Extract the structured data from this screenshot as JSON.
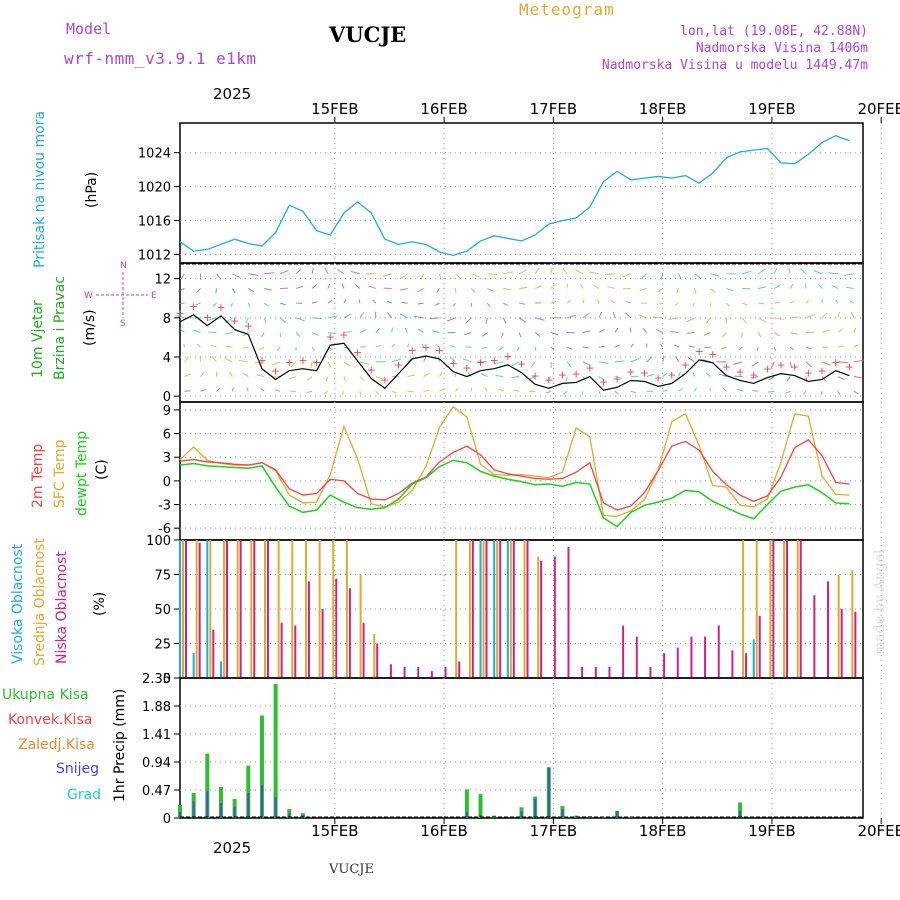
{
  "header": {
    "model_label": "Model",
    "model_name": "wrf-nmm_v3.9.1  e1km",
    "station": "VUCJE",
    "product": "Meteogram",
    "coords": "lon,lat (19.08E, 42.88N)",
    "elevation": "Nadmorska Visina 1406m",
    "model_elevation": "Nadmorska Visina u modelu 1449.47m",
    "footer_station": "VUCJE",
    "watermark": "made by Angel"
  },
  "colors": {
    "pressure": "#22aadd",
    "temp2m": "#ee4444",
    "sfc_temp": "#ddaa33",
    "dewpoint": "#22cc22",
    "high_cloud": "#22aadd",
    "mid_cloud": "#ddaa33",
    "low_cloud": "#cc2288",
    "total_precip": "#33bb33",
    "conv_precip": "#ee4444",
    "freezing": "#ee8833",
    "snow": "#4444dd",
    "hail": "#22cccc",
    "wind_label": "#22aa22",
    "direction_legend": "#aa44dd"
  },
  "time_axis": {
    "top_year": "2025",
    "bottom_year": "2025",
    "day_labels": [
      "15FEB",
      "16FEB",
      "17FEB",
      "18FEB",
      "19FEB",
      "20FEB"
    ]
  },
  "chart_data": [
    {
      "type": "line",
      "name": "pressure",
      "ylabel_left": "Pritisak na nivou mora",
      "unit": "(hPa)",
      "ylim": [
        1011,
        1027.5
      ],
      "yticks": [
        "1012",
        "1016",
        "1020",
        "1024"
      ],
      "grid": true,
      "x_hours": [
        0,
        3,
        6,
        9,
        12,
        15,
        18,
        21,
        24,
        27,
        30,
        33,
        36,
        39,
        42,
        45,
        48,
        51,
        54,
        57,
        60,
        63,
        66,
        69,
        72,
        75,
        78,
        81,
        84,
        87,
        90,
        93,
        96,
        99,
        102,
        105,
        108,
        111,
        114,
        117,
        120,
        123,
        126,
        129,
        132,
        135,
        138,
        141,
        144,
        147
      ],
      "series": [
        {
          "values": [
            1013.5,
            1012.4,
            1012.6,
            1013.2,
            1013.8,
            1013.3,
            1013.0,
            1014.6,
            1017.8,
            1017.1,
            1014.8,
            1014.3,
            1016.9,
            1018.2,
            1016.9,
            1013.8,
            1013.2,
            1013.5,
            1013.2,
            1012.3,
            1011.9,
            1012.4,
            1013.6,
            1014.2,
            1013.9,
            1013.6,
            1014.3,
            1015.6,
            1016.0,
            1016.3,
            1017.6,
            1020.6,
            1021.8,
            1020.8,
            1021.0,
            1021.2,
            1021.0,
            1021.3,
            1020.4,
            1021.6,
            1023.4,
            1024.1,
            1024.3,
            1024.5,
            1022.8,
            1022.7,
            1023.8,
            1025.2,
            1026.0,
            1025.4
          ]
        }
      ]
    },
    {
      "type": "line",
      "name": "wind",
      "ylabel_left": "10m Vjetar",
      "ylabel_left2": "Brzina i Pravac",
      "unit": "(m/s)",
      "ylim": [
        -0.6,
        13.6
      ],
      "yticks": [
        "0",
        "4",
        "8",
        "12"
      ],
      "direction_legend": {
        "n": "N",
        "s": "S",
        "w": "W",
        "e": "E"
      },
      "grid": true,
      "x_hours": [
        0,
        3,
        6,
        9,
        12,
        15,
        18,
        21,
        24,
        27,
        30,
        33,
        36,
        39,
        42,
        45,
        48,
        51,
        54,
        57,
        60,
        63,
        66,
        69,
        72,
        75,
        78,
        81,
        84,
        87,
        90,
        93,
        96,
        99,
        102,
        105,
        108,
        111,
        114,
        117,
        120,
        123,
        126,
        129,
        132,
        135,
        138,
        141,
        144,
        147
      ],
      "series": [
        {
          "name": "speed",
          "values": [
            7.6,
            8.3,
            7.2,
            8.2,
            6.8,
            6.3,
            2.8,
            1.7,
            2.6,
            2.8,
            2.6,
            5.2,
            5.4,
            3.6,
            1.8,
            0.8,
            2.3,
            3.8,
            4.1,
            3.8,
            2.5,
            2.0,
            2.6,
            2.8,
            3.2,
            2.4,
            1.2,
            0.8,
            1.3,
            1.4,
            2.0,
            0.6,
            0.9,
            1.6,
            1.5,
            1.0,
            1.3,
            2.3,
            3.7,
            3.4,
            2.1,
            1.6,
            1.3,
            1.9,
            2.3,
            2.1,
            1.5,
            1.7,
            2.6,
            2.1
          ]
        }
      ]
    },
    {
      "type": "line",
      "name": "temperature",
      "ylabel_left": "2m Temp",
      "ylabel_left2": "SFC Temp",
      "ylabel_left3": "dewpt Temp",
      "unit": "(C)",
      "ylim": [
        -7.5,
        10
      ],
      "yticks": [
        "-6",
        "-3",
        "0",
        "3",
        "6",
        "9"
      ],
      "grid": true,
      "x_hours": [
        0,
        3,
        6,
        9,
        12,
        15,
        18,
        21,
        24,
        27,
        30,
        33,
        36,
        39,
        42,
        45,
        48,
        51,
        54,
        57,
        60,
        63,
        66,
        69,
        72,
        75,
        78,
        81,
        84,
        87,
        90,
        93,
        96,
        99,
        102,
        105,
        108,
        111,
        114,
        117,
        120,
        123,
        126,
        129,
        132,
        135,
        138,
        141,
        144,
        147
      ],
      "series": [
        {
          "name": "2m",
          "values": [
            2.5,
            2.7,
            2.4,
            2.3,
            2.1,
            2.0,
            2.3,
            1.4,
            -1.0,
            -1.8,
            -1.6,
            0.2,
            0.0,
            -1.6,
            -2.3,
            -2.4,
            -1.6,
            -0.3,
            0.5,
            2.4,
            3.6,
            4.4,
            3.3,
            1.4,
            0.9,
            0.6,
            0.3,
            0.2,
            0.3,
            1.1,
            2.3,
            -2.8,
            -3.7,
            -3.2,
            -1.5,
            1.3,
            4.4,
            5.0,
            3.9,
            1.2,
            -0.5,
            -1.8,
            -2.6,
            -1.9,
            0.5,
            4.2,
            5.2,
            3.2,
            -0.2,
            -0.4
          ]
        },
        {
          "name": "sfc",
          "values": [
            2.7,
            4.3,
            2.6,
            2.2,
            2.0,
            2.0,
            2.3,
            1.3,
            -1.8,
            -2.8,
            -2.7,
            0.8,
            6.9,
            2.8,
            -2.9,
            -3.3,
            -2.7,
            -1.2,
            1.8,
            6.8,
            9.4,
            8.1,
            2.1,
            0.8,
            0.7,
            0.8,
            0.6,
            0.4,
            1.1,
            6.7,
            5.6,
            -4.4,
            -4.5,
            -3.8,
            -2.4,
            1.3,
            7.5,
            8.5,
            4.5,
            -0.6,
            -0.8,
            -3.1,
            -3.3,
            -2.3,
            2.4,
            8.5,
            8.2,
            0.6,
            -1.7,
            -1.8
          ]
        },
        {
          "name": "dewpt",
          "values": [
            2.0,
            2.2,
            1.9,
            1.8,
            1.7,
            1.6,
            1.9,
            -0.8,
            -3.2,
            -4.0,
            -3.7,
            -1.8,
            -2.7,
            -3.4,
            -3.6,
            -3.4,
            -2.3,
            -0.4,
            0.4,
            1.8,
            2.6,
            2.3,
            1.2,
            0.6,
            0.2,
            -0.1,
            -0.5,
            -0.4,
            -0.7,
            -0.2,
            -0.4,
            -4.7,
            -5.8,
            -4.0,
            -3.1,
            -2.7,
            -2.2,
            -1.2,
            -1.4,
            -2.6,
            -3.4,
            -4.2,
            -4.8,
            -3.0,
            -1.3,
            -0.8,
            -0.5,
            -1.5,
            -2.8,
            -2.9
          ]
        }
      ]
    },
    {
      "type": "bar",
      "name": "cloud",
      "ylabel_left": "Visoka Oblacnost",
      "ylabel_left2": "Srednja Oblacnost",
      "ylabel_left3": "Niska Oblacnost",
      "unit": "(%)",
      "ylim": [
        0,
        100
      ],
      "yticks": [
        "0",
        "25",
        "50",
        "75",
        "100"
      ],
      "grid": true,
      "x_hours": [
        0,
        3,
        6,
        9,
        12,
        15,
        18,
        21,
        24,
        27,
        30,
        33,
        36,
        39,
        42,
        45,
        48,
        51,
        54,
        57,
        60,
        63,
        66,
        69,
        72,
        75,
        78,
        81,
        84,
        87,
        90,
        93,
        96,
        99,
        102,
        105,
        108,
        111,
        114,
        117,
        120,
        123,
        126,
        129,
        132,
        135,
        138,
        141,
        144,
        147
      ],
      "series": [
        {
          "name": "high",
          "values": [
            100,
            18,
            100,
            12,
            0,
            0,
            0,
            0,
            0,
            0,
            0,
            0,
            0,
            0,
            0,
            0,
            0,
            0,
            0,
            0,
            0,
            0,
            100,
            100,
            100,
            0,
            0,
            0,
            0,
            0,
            0,
            0,
            0,
            0,
            0,
            0,
            0,
            0,
            0,
            0,
            0,
            0,
            28,
            0,
            0,
            0,
            0,
            0,
            0,
            0
          ]
        },
        {
          "name": "mid",
          "values": [
            100,
            100,
            100,
            100,
            100,
            100,
            100,
            100,
            100,
            100,
            100,
            100,
            100,
            75,
            32,
            0,
            0,
            0,
            0,
            0,
            100,
            100,
            100,
            100,
            100,
            100,
            88,
            0,
            0,
            0,
            0,
            0,
            0,
            0,
            0,
            0,
            0,
            0,
            0,
            0,
            0,
            100,
            100,
            100,
            100,
            100,
            0,
            0,
            75,
            78
          ]
        },
        {
          "name": "low",
          "values": [
            100,
            98,
            35,
            100,
            100,
            100,
            100,
            40,
            38,
            70,
            50,
            72,
            65,
            40,
            25,
            10,
            8,
            8,
            5,
            8,
            12,
            100,
            100,
            100,
            100,
            100,
            85,
            88,
            95,
            8,
            8,
            8,
            38,
            30,
            8,
            18,
            22,
            30,
            30,
            38,
            20,
            18,
            45,
            100,
            100,
            100,
            60,
            70,
            50,
            48
          ]
        }
      ]
    },
    {
      "type": "bar",
      "name": "precipitation",
      "ylabel_left": "Ukupna Kisa",
      "ylabel_left2": "Konvek.Kisa",
      "ylabel_left3": "Zaledj.Kisa",
      "ylabel_left4": "Snijeg",
      "ylabel_left5": "Grad",
      "ylabel_right": "1hr Precip (mm)",
      "ylim": [
        0,
        2.35
      ],
      "yticks": [
        "0",
        "0.47",
        "0.94",
        "1.41",
        "1.88",
        "2.35"
      ],
      "grid": true,
      "x_hours": [
        0,
        3,
        6,
        9,
        12,
        15,
        18,
        21,
        24,
        27,
        30,
        33,
        36,
        39,
        42,
        45,
        48,
        51,
        54,
        57,
        60,
        63,
        66,
        69,
        72,
        75,
        78,
        81,
        84,
        87,
        90,
        93,
        96,
        99,
        102,
        105,
        108,
        111,
        114,
        117,
        120,
        123,
        126,
        129,
        132,
        135,
        138,
        141,
        144,
        147
      ],
      "series": [
        {
          "name": "total",
          "values": [
            0.22,
            0.42,
            1.08,
            0.52,
            0.32,
            0.88,
            1.72,
            2.25,
            0.15,
            0.08,
            0.0,
            0.0,
            0.0,
            0.0,
            0.0,
            0.0,
            0.0,
            0.0,
            0.0,
            0.0,
            0.0,
            0.48,
            0.4,
            0.04,
            0.0,
            0.18,
            0.36,
            0.85,
            0.2,
            0.04,
            0.03,
            0.02,
            0.12,
            0.02,
            0.0,
            0.0,
            0.0,
            0.0,
            0.0,
            0.0,
            0.0,
            0.26,
            0.0,
            0.0,
            0.0,
            0.0,
            0.0,
            0.0,
            0.0,
            0.0
          ]
        },
        {
          "name": "snow",
          "values": [
            0.1,
            0.28,
            0.45,
            0.25,
            0.18,
            0.42,
            0.55,
            0.35,
            0.08,
            0.05,
            0.0,
            0.0,
            0.0,
            0.0,
            0.0,
            0.0,
            0.0,
            0.0,
            0.0,
            0.0,
            0.0,
            0.1,
            0.05,
            0.0,
            0.0,
            0.12,
            0.32,
            0.85,
            0.15,
            0.02,
            0.01,
            0.01,
            0.12,
            0.01,
            0.0,
            0.0,
            0.0,
            0.0,
            0.0,
            0.0,
            0.0,
            0.12,
            0.0,
            0.0,
            0.0,
            0.0,
            0.0,
            0.0,
            0.0,
            0.0
          ]
        }
      ]
    }
  ]
}
